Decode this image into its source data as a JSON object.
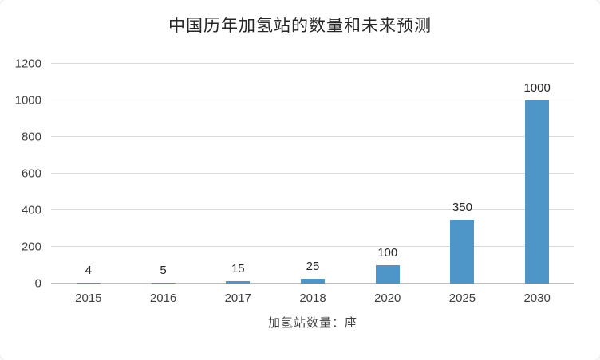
{
  "chart_data": {
    "type": "bar",
    "title": "中国历年加氢站的数量和未来预测",
    "categories": [
      "2015",
      "2016",
      "2017",
      "2018",
      "2020",
      "2025",
      "2030"
    ],
    "values": [
      4,
      5,
      15,
      25,
      100,
      350,
      1000
    ],
    "xlabel": "加氢站数量：座",
    "ylabel": "",
    "ylim": [
      0,
      1200
    ],
    "ytick_step": 200,
    "yticks": [
      0,
      200,
      400,
      600,
      800,
      1000,
      1200
    ],
    "grid": true,
    "legend": "none",
    "colors": {
      "bar": "#4E95C8",
      "gridline": "#D9D9D9",
      "axis": "#BFBFBF",
      "text": "#404040",
      "title": "#262626",
      "background": "#FFFFFF"
    }
  }
}
